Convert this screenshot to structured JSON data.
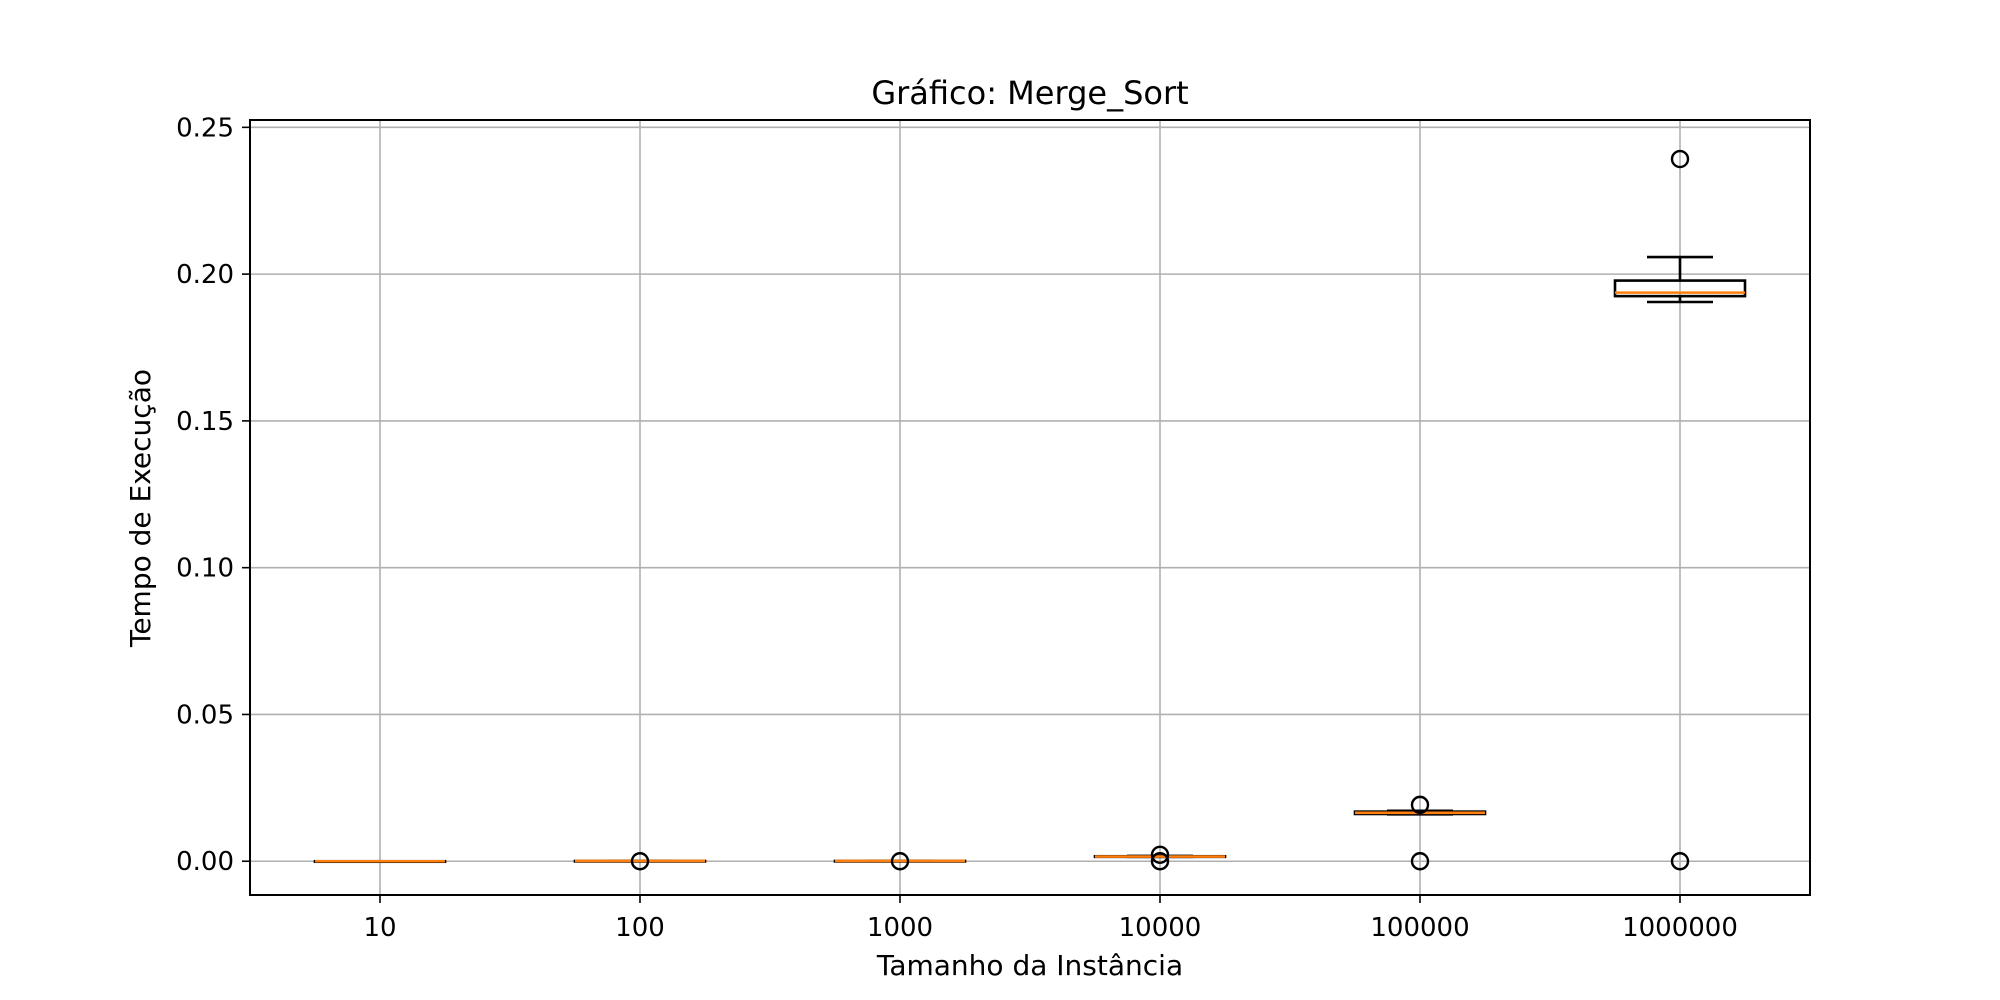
{
  "chart_data": {
    "type": "box",
    "title": "Gráfico: Merge_Sort",
    "xlabel": "Tamanho da Instância",
    "ylabel": "Tempo de Execução",
    "ylim": [
      -0.0115,
      0.2525
    ],
    "yticks": [
      0.0,
      0.05,
      0.1,
      0.15,
      0.2,
      0.25
    ],
    "ytick_labels": [
      "0.00",
      "0.05",
      "0.10",
      "0.15",
      "0.20",
      "0.25"
    ],
    "grid": true,
    "categories": [
      "10",
      "100",
      "1000",
      "10000",
      "100000",
      "1000000"
    ],
    "boxes": [
      {
        "category": "10",
        "whislo": 0.0,
        "q1": 0.0,
        "med": 0.0,
        "q3": 0.0,
        "whishi": 0.0,
        "fliers": []
      },
      {
        "category": "100",
        "whislo": 0.0001,
        "q1": 0.0001,
        "med": 0.0001,
        "q3": 0.0001,
        "whishi": 0.0001,
        "fliers": [
          0.0
        ]
      },
      {
        "category": "1000",
        "whislo": 0.0001,
        "q1": 0.0001,
        "med": 0.0001,
        "q3": 0.0001,
        "whishi": 0.0001,
        "fliers": [
          0.0
        ]
      },
      {
        "category": "10000",
        "whislo": 0.0015,
        "q1": 0.0015,
        "med": 0.0016,
        "q3": 0.0017,
        "whishi": 0.0018,
        "fliers": [
          0.0022,
          0.0
        ]
      },
      {
        "category": "100000",
        "whislo": 0.016,
        "q1": 0.0161,
        "med": 0.0165,
        "q3": 0.0169,
        "whishi": 0.0172,
        "fliers": [
          0.0192,
          0.0
        ]
      },
      {
        "category": "1000000",
        "whislo": 0.1905,
        "q1": 0.1925,
        "med": 0.1937,
        "q3": 0.1978,
        "whishi": 0.2058,
        "fliers": [
          0.2392,
          0.0
        ]
      }
    ],
    "colors": {
      "box": "#000000",
      "median": "#ff7f0e",
      "grid": "#b0b0b0"
    }
  }
}
